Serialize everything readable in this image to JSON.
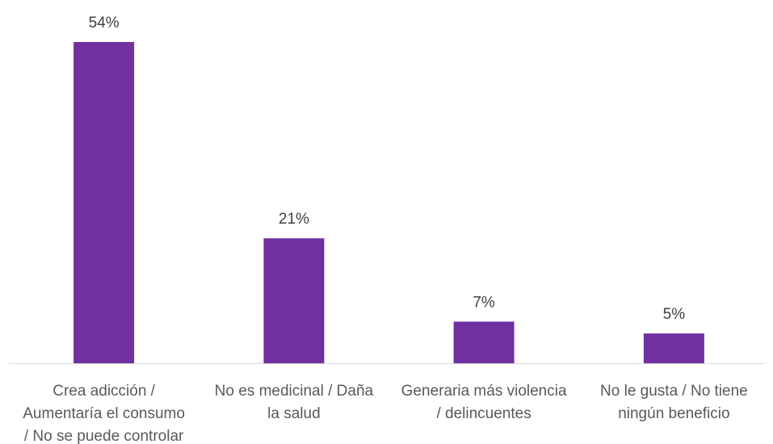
{
  "chart_data": {
    "type": "bar",
    "categories": [
      [
        "Crea adicción /",
        "Aumentaría el consumo",
        "/ No se puede controlar"
      ],
      [
        "No es medicinal / Daña",
        "la salud"
      ],
      [
        "Generaria más violencia",
        "/ delincuentes"
      ],
      [
        "No le gusta / No tiene",
        "ningún beneficio"
      ]
    ],
    "values": [
      54,
      21,
      7,
      5
    ],
    "value_labels": [
      "54%",
      "21%",
      "7%",
      "5%"
    ],
    "ylim": [
      0,
      54
    ],
    "grid": false,
    "legend": "none",
    "colors": {
      "bar": "#7030a0",
      "axis": "#d9d9d9",
      "value_text": "#404040",
      "category_text": "#595959"
    }
  }
}
